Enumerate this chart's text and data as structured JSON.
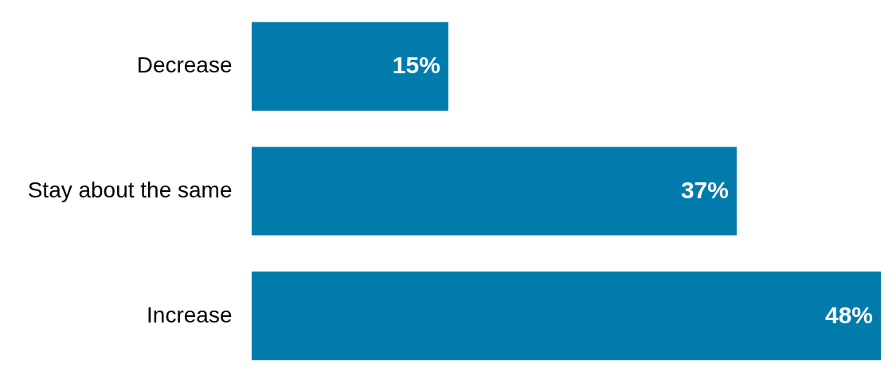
{
  "chart_data": {
    "type": "bar",
    "orientation": "horizontal",
    "categories": [
      "Decrease",
      "Stay about the same",
      "Increase"
    ],
    "values": [
      15,
      37,
      48
    ],
    "color": "#007bac",
    "value_labels": [
      "15%",
      "37%",
      "48%"
    ]
  }
}
